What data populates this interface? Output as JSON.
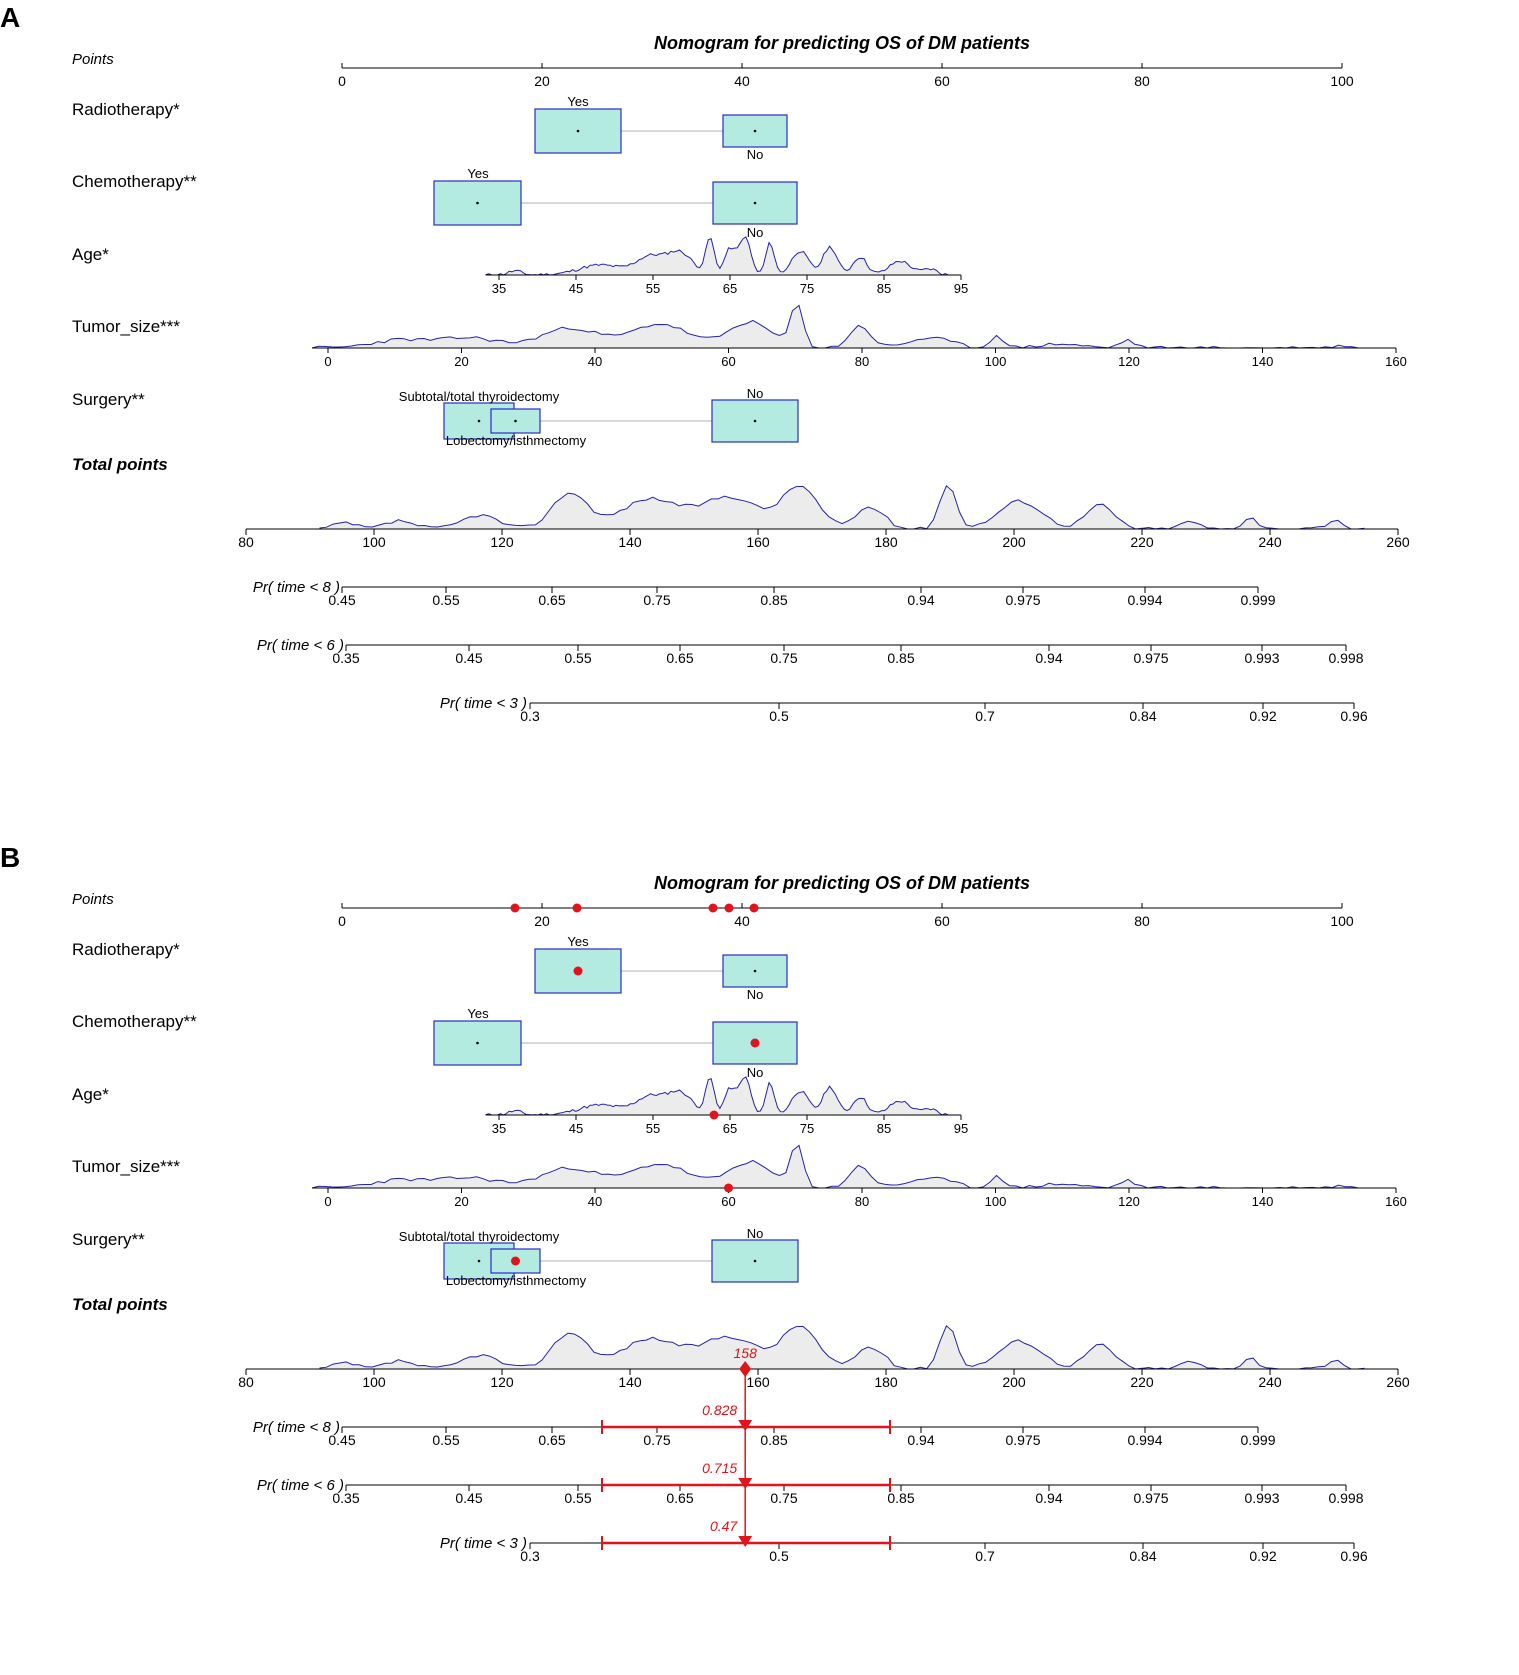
{
  "chart_data": {
    "type": "nomogram",
    "panels": [
      {
        "id": "A",
        "letter": "A",
        "title": "Nomogram for predicting OS of DM patients",
        "points_label": "Points",
        "points_ticks": [
          "0",
          "20",
          "40",
          "60",
          "80",
          "100"
        ],
        "variables": {
          "radiotherapy": {
            "label": "Radiotherapy*",
            "levels": [
              {
                "name": "Yes",
                "points": 23.5
              },
              {
                "name": "No",
                "points": 41.2
              }
            ]
          },
          "chemotherapy": {
            "label": "Chemotherapy**",
            "levels": [
              {
                "name": "Yes",
                "points": 13.5
              },
              {
                "name": "No",
                "points": 41.2
              }
            ]
          },
          "age": {
            "label": "Age*",
            "ticks": [
              "35",
              "45",
              "55",
              "65",
              "75",
              "85",
              "95"
            ],
            "range": [
              35,
              95
            ]
          },
          "tumor_size": {
            "label": "Tumor_size***",
            "ticks": [
              "0",
              "20",
              "40",
              "60",
              "80",
              "100",
              "120",
              "140",
              "160"
            ],
            "range": [
              0,
              160
            ]
          },
          "surgery": {
            "label": "Surgery**",
            "levels": [
              {
                "name": "Subtotal/total thyroidectomy",
                "points": 13.6
              },
              {
                "name": "Lobectomy/isthmectomy",
                "points": 17.3
              },
              {
                "name": "No",
                "points": 41.2
              }
            ]
          }
        },
        "total_points_label": "Total points",
        "total_ticks": [
          "80",
          "100",
          "120",
          "140",
          "160",
          "180",
          "200",
          "220",
          "240",
          "260"
        ],
        "probability_axes": [
          {
            "label": "Pr( time < 8 )",
            "ticks": [
              "0.45",
              "0.55",
              "0.65",
              "0.75",
              "0.85",
              "0.94",
              "0.975",
              "0.994",
              "0.999"
            ]
          },
          {
            "label": "Pr( time < 6 )",
            "ticks": [
              "0.35",
              "0.45",
              "0.55",
              "0.65",
              "0.75",
              "0.85",
              "0.94",
              "0.975",
              "0.993",
              "0.998"
            ]
          },
          {
            "label": "Pr( time < 3 )",
            "ticks": [
              "0.3",
              "0.5",
              "0.7",
              "0.84",
              "0.92",
              "0.96"
            ]
          }
        ]
      },
      {
        "id": "B",
        "letter": "B",
        "title": "Nomogram for predicting OS of DM patients",
        "points_label": "Points",
        "points_ticks": [
          "0",
          "20",
          "40",
          "60",
          "80",
          "100"
        ],
        "variables": {
          "radiotherapy": {
            "label": "Radiotherapy*",
            "levels": [
              {
                "name": "Yes",
                "points": 23.5
              },
              {
                "name": "No",
                "points": 41.2
              }
            ],
            "selected": "Yes"
          },
          "chemotherapy": {
            "label": "Chemotherapy**",
            "levels": [
              {
                "name": "Yes",
                "points": 13.5
              },
              {
                "name": "No",
                "points": 41.2
              }
            ],
            "selected": "No"
          },
          "age": {
            "label": "Age*",
            "ticks": [
              "35",
              "45",
              "55",
              "65",
              "75",
              "85",
              "95"
            ],
            "range": [
              35,
              95
            ],
            "selected_value": 62
          },
          "tumor_size": {
            "label": "Tumor_size***",
            "ticks": [
              "0",
              "20",
              "40",
              "60",
              "80",
              "100",
              "120",
              "140",
              "160"
            ],
            "range": [
              0,
              160
            ],
            "selected_value": 60
          },
          "surgery": {
            "label": "Surgery**",
            "levels": [
              {
                "name": "Subtotal/total thyroidectomy",
                "points": 13.6
              },
              {
                "name": "Lobectomy/isthmectomy",
                "points": 17.3
              },
              {
                "name": "No",
                "points": 41.2
              }
            ],
            "selected": "Lobectomy/isthmectomy"
          }
        },
        "total_points_label": "Total points",
        "total_ticks": [
          "80",
          "100",
          "120",
          "140",
          "160",
          "180",
          "200",
          "220",
          "240",
          "260"
        ],
        "total_points_value": "158",
        "probability_axes": [
          {
            "label": "Pr( time < 8 )",
            "ticks": [
              "0.45",
              "0.55",
              "0.65",
              "0.75",
              "0.85",
              "0.94",
              "0.975",
              "0.994",
              "0.999"
            ],
            "predicted": "0.828"
          },
          {
            "label": "Pr( time < 6 )",
            "ticks": [
              "0.35",
              "0.45",
              "0.55",
              "0.65",
              "0.75",
              "0.85",
              "0.94",
              "0.975",
              "0.993",
              "0.998"
            ],
            "predicted": "0.715"
          },
          {
            "label": "Pr( time < 3 )",
            "ticks": [
              "0.3",
              "0.5",
              "0.7",
              "0.84",
              "0.92",
              "0.96"
            ],
            "predicted": "0.47"
          }
        ],
        "points_markers": [
          17.3,
          23.5,
          37.1,
          38.7,
          41.2
        ]
      }
    ],
    "colors": {
      "box_fill": "#b3ebe1",
      "box_stroke": "#2b2bc8",
      "density_fill": "#ececec",
      "density_stroke": "#2323a8",
      "highlight": "#e0141a"
    }
  }
}
